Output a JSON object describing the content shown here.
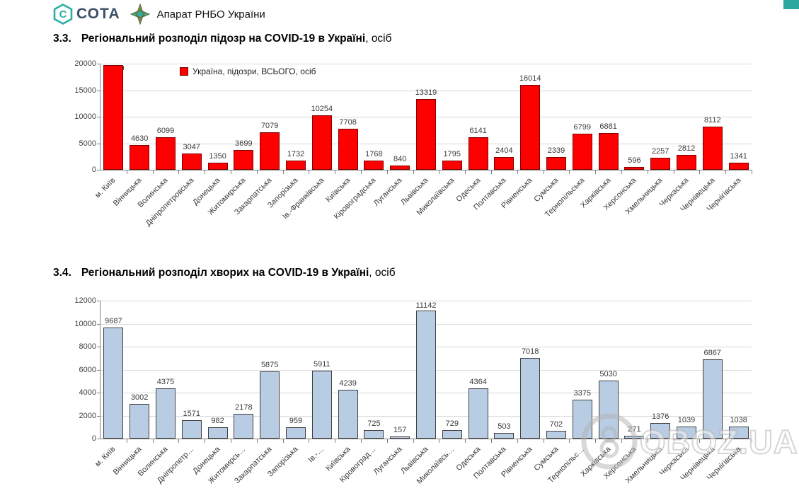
{
  "header": {
    "logo_text": "СОТА",
    "org_name": "Апарат РНБО України"
  },
  "colors": {
    "accent_teal": "#2BA8A0",
    "logo_blue": "#3D4F66",
    "emblem_olive": "#77864C",
    "suspected_bar": "#FF0000",
    "suspected_bar_border": "#7F0000",
    "sick_bar": "#B8CCE4",
    "sick_bar_border": "#404040",
    "gridline": "#D9D9D9",
    "axis": "#808080"
  },
  "watermark": {
    "text": "OBOZ.UA"
  },
  "chart_data": [
    {
      "type": "bar",
      "section_number": "3.3.",
      "title": "Регіональний розподіл підозр на COVID-19 в Україні",
      "title_suffix": ", осіб",
      "legend_label": "Україна, підозри, ВСЬОГО, осіб",
      "legend_color": "#FF0000",
      "bar_color": "#FF0000",
      "bar_border_color": "#7F0000",
      "grid": true,
      "legend_position": "inside-top-left",
      "ylim": [
        0,
        20000
      ],
      "ytick_step": 5000,
      "yticks": [
        "0",
        "5000",
        "10000",
        "15000",
        "20000"
      ],
      "categories": [
        "м. Київ",
        "Вінницька",
        "Волинська",
        "Дніпропетровська",
        "Донецька",
        "Житомирська",
        "Закарпатська",
        "Запорізька",
        "Ів.-Франківська",
        "Київська",
        "Кіровоградська",
        "Луганська",
        "Львівська",
        "Миколаївська",
        "Одеська",
        "Полтавська",
        "Рівненська",
        "Сумська",
        "Тернопільська",
        "Харківська",
        "Херсонська",
        "Хмельницька",
        "Черкаська",
        "Чернівецька",
        "Чернігівська"
      ],
      "values": [
        19679,
        4630,
        6099,
        3047,
        1350,
        3699,
        7079,
        1732,
        10254,
        7708,
        1768,
        840,
        13319,
        1795,
        6141,
        2404,
        16014,
        2339,
        6799,
        6881,
        596,
        2257,
        2812,
        8112,
        1341
      ],
      "xlabel": "",
      "ylabel": ""
    },
    {
      "type": "bar",
      "section_number": "3.4.",
      "title": "Регіональний розподіл хворих на COVID-19 в Україні",
      "title_suffix": ", осіб",
      "legend_label": "",
      "bar_color": "#B8CCE4",
      "bar_border_color": "#404040",
      "grid": true,
      "ylim": [
        0,
        12000
      ],
      "ytick_step": 2000,
      "yticks": [
        "0",
        "2000",
        "4000",
        "6000",
        "8000",
        "10000",
        "12000"
      ],
      "categories": [
        "м. Київ",
        "Вінницька",
        "Волинська",
        "Дніпропетр…",
        "Донецька",
        "Житомирсь…",
        "Закарпатська",
        "Запорізька",
        "Ів.-…",
        "Київська",
        "Кіровоград…",
        "Луганська",
        "Львівська",
        "Миколаївсь…",
        "Одеська",
        "Полтавська",
        "Рівненська",
        "Сумська",
        "Тернопільс…",
        "Харківська",
        "Херсонська",
        "Хмельницька",
        "Черкаська",
        "Чернівецька",
        "Чернігівська"
      ],
      "values": [
        9687,
        3002,
        4375,
        1571,
        982,
        2178,
        5875,
        959,
        5911,
        4239,
        725,
        157,
        11142,
        729,
        4364,
        503,
        7018,
        702,
        3375,
        5030,
        271,
        1376,
        1039,
        6867,
        1038
      ],
      "xlabel": "",
      "ylabel": ""
    }
  ]
}
